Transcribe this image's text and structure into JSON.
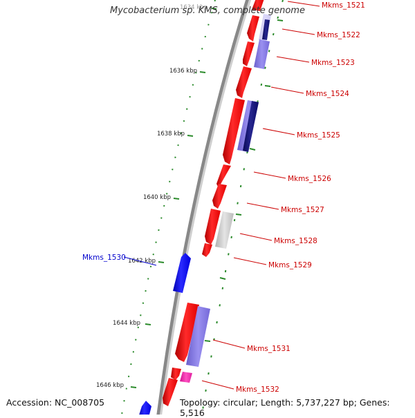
{
  "title": "Mycobacterium sp. KMS, complete genome",
  "footer": {
    "accession": "Accession: NC_008705",
    "summary": "Topology: circular; Length: 5,737,227 bp; Genes: 5,516"
  },
  "colors": {
    "backbone": "#888888",
    "ticks": "#2a8a2a",
    "forward_gene": "#ee1111",
    "reverse_gene": "#1111ee",
    "label_forward": "#cc0000",
    "label_reverse": "#0000cc",
    "feature_purple": "#7b6fd6",
    "feature_navy": "#101070",
    "feature_gray": "#c4c4c4",
    "feature_pink": "#ee22aa"
  },
  "ticks": [
    {
      "label": "1634 kbp"
    },
    {
      "label": "1636 kbp"
    },
    {
      "label": "1638 kbp"
    },
    {
      "label": "1640 kbp"
    },
    {
      "label": "1642 kbp"
    },
    {
      "label": "1644 kbp"
    },
    {
      "label": "1646 kbp"
    }
  ],
  "genes": [
    {
      "name": "Mkms_1521",
      "strand": "+"
    },
    {
      "name": "Mkms_1522",
      "strand": "+"
    },
    {
      "name": "Mkms_1523",
      "strand": "+"
    },
    {
      "name": "Mkms_1524",
      "strand": "+"
    },
    {
      "name": "Mkms_1525",
      "strand": "+"
    },
    {
      "name": "Mkms_1526",
      "strand": "+"
    },
    {
      "name": "Mkms_1527",
      "strand": "+"
    },
    {
      "name": "Mkms_1528",
      "strand": "+"
    },
    {
      "name": "Mkms_1529",
      "strand": "+"
    },
    {
      "name": "Mkms_1530",
      "strand": "-"
    },
    {
      "name": "Mkms_1531",
      "strand": "+"
    },
    {
      "name": "Mkms_1532",
      "strand": "+"
    }
  ]
}
